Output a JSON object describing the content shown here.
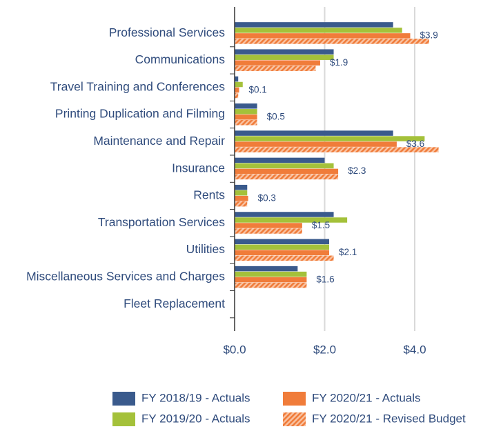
{
  "chart_data": {
    "type": "hbar",
    "categories": [
      "Professional Services",
      "Communications",
      "Travel Training and Conferences",
      "Printing Duplication and Filming",
      "Maintenance and Repair",
      "Insurance",
      "Rents",
      "Transportation Services",
      "Utilities",
      "Miscellaneous Services and Charges",
      "Fleet Replacement"
    ],
    "series": [
      {
        "name": "FY 2018/19 - Actuals",
        "color": "#3a5a8c",
        "values": [
          3.52,
          2.2,
          0.08,
          0.5,
          3.52,
          2.0,
          0.28,
          2.2,
          2.1,
          1.4,
          null
        ]
      },
      {
        "name": "FY 2019/20 - Actuals",
        "color": "#a4c13a",
        "values": [
          3.72,
          2.2,
          0.18,
          0.5,
          4.22,
          2.2,
          0.28,
          2.5,
          2.1,
          1.6,
          null
        ]
      },
      {
        "name": "FY 2020/21 - Actuals",
        "color": "#f07c3a",
        "values": [
          3.9,
          1.9,
          0.1,
          0.5,
          3.6,
          2.3,
          0.3,
          1.5,
          2.1,
          1.6,
          null
        ],
        "value_labels": [
          "$3.9",
          "$1.9",
          "$0.1",
          "$0.5",
          "$3.6",
          "$2.3",
          "$0.3",
          "$1.5",
          "$2.1",
          "$1.6",
          null
        ]
      },
      {
        "name": "FY 2020/21 - Revised Budget",
        "color": "#f07c3a",
        "hatch": true,
        "values": [
          4.32,
          1.8,
          0.08,
          0.5,
          4.53,
          2.3,
          0.28,
          1.5,
          2.2,
          1.6,
          null
        ]
      }
    ],
    "xlim": [
      0,
      5.6
    ],
    "xticks": [
      {
        "value": 0,
        "label": "$0.0"
      },
      {
        "value": 2,
        "label": "$2.0"
      },
      {
        "value": 4,
        "label": "$4.0"
      }
    ],
    "grid": true
  }
}
